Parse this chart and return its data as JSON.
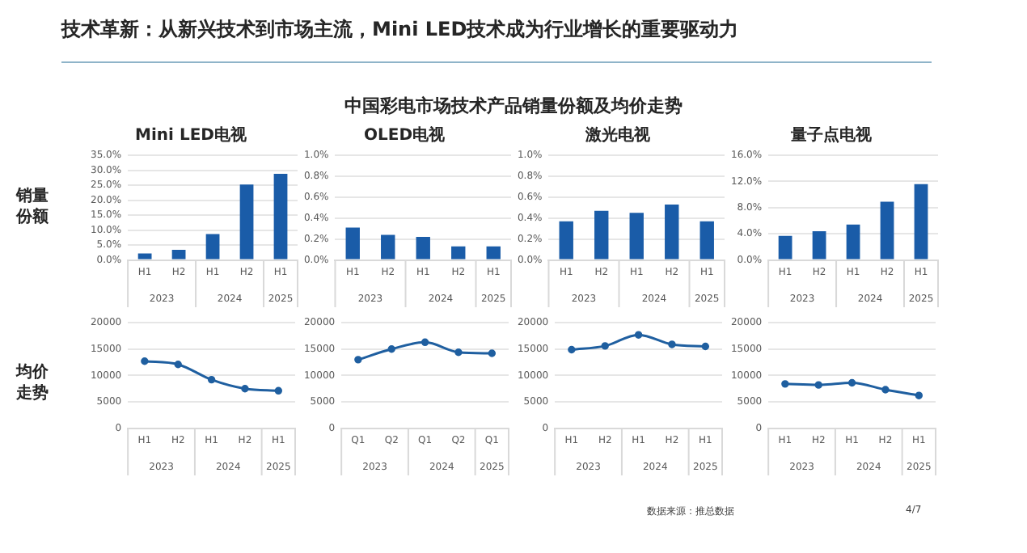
{
  "chart_data": [
    {
      "type": "other",
      "title": "技术革新：从新兴技术到市场主流，Mini LED技术成为行业增长的重要驱动力",
      "subtitle": "中国彩电市场技术产品销量份额及均价走势",
      "annotations": [
        "数据来源：推总数据",
        "4/7"
      ]
    },
    {
      "type": "bar",
      "title": "Mini LED电视",
      "ylabel": "销量份额",
      "categories": [
        "H1",
        "H2",
        "H1",
        "H2",
        "H1"
      ],
      "annotations": [
        "2023",
        "2024",
        "2025"
      ],
      "values": [
        2.2,
        3.4,
        8.7,
        25.2,
        28.8
      ],
      "color": "#1a5ca8",
      "ylim": [
        0,
        35
      ],
      "yticks": [
        {
          "value": 0,
          "label": "0.0%"
        },
        {
          "value": 5,
          "label": "5.0%"
        },
        {
          "value": 10,
          "label": "10.0%"
        },
        {
          "value": 15,
          "label": "15.0%"
        },
        {
          "value": 20,
          "label": "20.0%"
        },
        {
          "value": 25,
          "label": "25.0%"
        },
        {
          "value": 30,
          "label": "30.0%"
        },
        {
          "value": 35,
          "label": "35.0%"
        }
      ],
      "grid": "y",
      "legend": false
    },
    {
      "type": "bar",
      "title": "OLED电视",
      "categories": [
        "H1",
        "H2",
        "H1",
        "H2",
        "H1"
      ],
      "annotations": [
        "2023",
        "2024",
        "2025"
      ],
      "values": [
        0.31,
        0.24,
        0.22,
        0.13,
        0.13
      ],
      "color": "#1a5ca8",
      "ylim": [
        0,
        1
      ],
      "yticks": [
        {
          "value": 0,
          "label": "0.0%"
        },
        {
          "value": 0.2,
          "label": "0.2%"
        },
        {
          "value": 0.4,
          "label": "0.4%"
        },
        {
          "value": 0.6,
          "label": "0.6%"
        },
        {
          "value": 0.8,
          "label": "0.8%"
        },
        {
          "value": 1,
          "label": "1.0%"
        }
      ],
      "grid": "y",
      "legend": false
    },
    {
      "type": "bar",
      "title": "激光电视",
      "categories": [
        "H1",
        "H2",
        "H1",
        "H2",
        "H1"
      ],
      "annotations": [
        "2023",
        "2024",
        "2025"
      ],
      "values": [
        0.37,
        0.47,
        0.45,
        0.53,
        0.37
      ],
      "color": "#1a5ca8",
      "ylim": [
        0,
        1
      ],
      "yticks": [
        {
          "value": 0,
          "label": "0.0%"
        },
        {
          "value": 0.2,
          "label": "0.2%"
        },
        {
          "value": 0.4,
          "label": "0.4%"
        },
        {
          "value": 0.6,
          "label": "0.6%"
        },
        {
          "value": 0.8,
          "label": "0.8%"
        },
        {
          "value": 1,
          "label": "1.0%"
        }
      ],
      "grid": "y",
      "legend": false
    },
    {
      "type": "bar",
      "title": "量子点电视",
      "categories": [
        "H1",
        "H2",
        "H1",
        "H2",
        "H1"
      ],
      "annotations": [
        "2023",
        "2024",
        "2025"
      ],
      "values": [
        3.7,
        4.4,
        5.4,
        8.9,
        11.6
      ],
      "color": "#1a5ca8",
      "ylim": [
        0,
        16
      ],
      "yticks": [
        {
          "value": 0,
          "label": "0.0%"
        },
        {
          "value": 4,
          "label": "4.0%"
        },
        {
          "value": 8,
          "label": "8.0%"
        },
        {
          "value": 12,
          "label": "12.0%"
        },
        {
          "value": 16,
          "label": "16.0%"
        }
      ],
      "grid": "y",
      "legend": false
    },
    {
      "type": "line",
      "ylabel": "均价走势",
      "categories": [
        "H1",
        "H2",
        "H1",
        "H2",
        "H1"
      ],
      "annotations": [
        "2023",
        "2024",
        "2025"
      ],
      "values": [
        12700,
        12100,
        9200,
        7500,
        7100
      ],
      "color": "#1f5fa0",
      "ylim": [
        0,
        20000
      ],
      "yticks": [
        0,
        5000,
        10000,
        15000,
        20000
      ],
      "grid": "y",
      "legend": false,
      "marker": "circle"
    },
    {
      "type": "line",
      "categories": [
        "Q1",
        "Q2",
        "Q1",
        "Q2",
        "Q1"
      ],
      "annotations": [
        "2023",
        "2024",
        "2025"
      ],
      "values": [
        13000,
        15000,
        16300,
        14400,
        14200
      ],
      "color": "#1f5fa0",
      "ylim": [
        0,
        20000
      ],
      "yticks": [
        0,
        5000,
        10000,
        15000,
        20000
      ],
      "grid": "y",
      "legend": false,
      "marker": "circle"
    },
    {
      "type": "line",
      "categories": [
        "H1",
        "H2",
        "H1",
        "H2",
        "H1"
      ],
      "annotations": [
        "2023",
        "2024",
        "2025"
      ],
      "values": [
        14900,
        15600,
        17700,
        15900,
        15500
      ],
      "color": "#1f5fa0",
      "ylim": [
        0,
        20000
      ],
      "yticks": [
        0,
        5000,
        10000,
        15000,
        20000
      ],
      "grid": "y",
      "legend": false,
      "marker": "circle"
    },
    {
      "type": "line",
      "categories": [
        "H1",
        "H2",
        "H1",
        "H2",
        "H1"
      ],
      "annotations": [
        "2023",
        "2024",
        "2025"
      ],
      "values": [
        8400,
        8200,
        8600,
        7300,
        6200
      ],
      "color": "#1f5fa0",
      "ylim": [
        0,
        20000
      ],
      "yticks": [
        0,
        5000,
        10000,
        15000,
        20000
      ],
      "grid": "y",
      "legend": false,
      "marker": "circle"
    }
  ]
}
